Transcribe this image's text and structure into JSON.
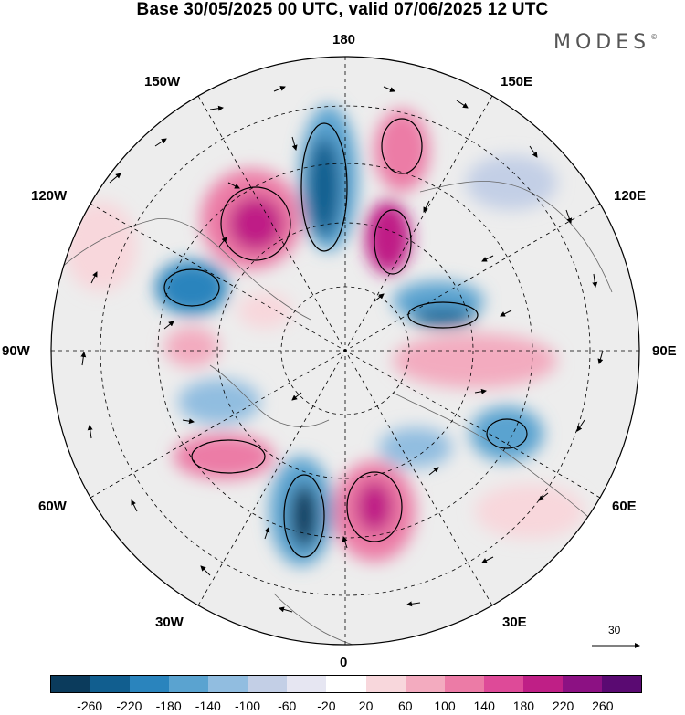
{
  "title": "Base 30/05/2025 00 UTC, valid 07/06/2025 12 UTC",
  "brand": "MODES",
  "brand_mark": "©",
  "longitude_labels": {
    "top": "180",
    "top_left": "150W",
    "top_right": "150E",
    "upper_left": "120W",
    "upper_right": "120E",
    "left": "90W",
    "right": "90E",
    "lower_left": "60W",
    "lower_right": "60E",
    "bottom_left": "30W",
    "bottom_right": "30E",
    "bottom": "0"
  },
  "reference_vector_label": "30",
  "colorbar": {
    "colors": [
      "#0b3b5c",
      "#115e8f",
      "#2a84bd",
      "#5aa3d0",
      "#91bde0",
      "#c3cfe6",
      "#e6e6f2",
      "#ffffff",
      "#f8d7dc",
      "#f3abbf",
      "#ec7ba6",
      "#de4a98",
      "#bf1f86",
      "#8c1183",
      "#5a0a72"
    ],
    "tick_labels": [
      "-260",
      "-220",
      "-180",
      "-140",
      "-100",
      "-60",
      "-20",
      "20",
      "60",
      "100",
      "140",
      "180",
      "220",
      "260"
    ]
  }
}
